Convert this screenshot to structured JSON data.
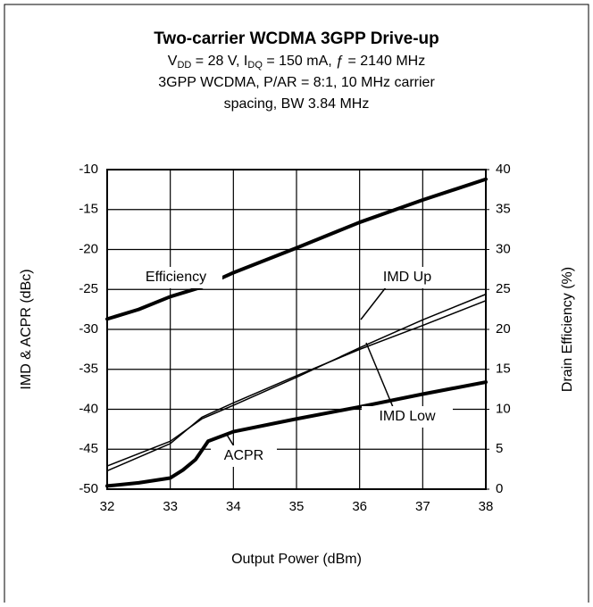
{
  "chart_data": {
    "type": "line",
    "title": "Two-carrier WCDMA 3GPP Drive-up",
    "subtitle": [
      [
        {
          "text": "V"
        },
        {
          "text": "DD",
          "sub": true
        },
        {
          "text": " = 28 V, I"
        },
        {
          "text": "DQ",
          "sub": true
        },
        {
          "text": " = 150 mA, ƒ = 2140 MHz"
        }
      ],
      [
        {
          "text": "3GPP WCDMA, P/AR = 8:1, 10 MHz carrier"
        }
      ],
      [
        {
          "text": "spacing, BW 3.84 MHz"
        }
      ]
    ],
    "xlabel": "Output Power (dBm)",
    "ylabel": "IMD & ACPR (dBc)",
    "y2label": "Drain Efficiency (%)",
    "xlim": [
      32,
      38
    ],
    "xticks": [
      32,
      33,
      34,
      35,
      36,
      37,
      38
    ],
    "ylim": [
      -50,
      -10
    ],
    "yticks": [
      -10,
      -15,
      -20,
      -25,
      -30,
      -35,
      -40,
      -45,
      -50
    ],
    "y2lim": [
      0,
      40
    ],
    "y2ticks": [
      40,
      35,
      30,
      25,
      20,
      15,
      10,
      5,
      0
    ],
    "grid": true,
    "series": [
      {
        "name": "Efficiency",
        "color": "#000000",
        "width": 4,
        "axis": "y2",
        "x": [
          32,
          32.5,
          33,
          33.5,
          34,
          35,
          36,
          37,
          38
        ],
        "values": [
          21.3,
          22.5,
          24.1,
          25.3,
          27.1,
          30.2,
          33.4,
          36.2,
          38.8
        ]
      },
      {
        "name": "IMD Up",
        "color": "#000000",
        "width": 1.5,
        "x": [
          32,
          33,
          33.5,
          34,
          35,
          36,
          37,
          38
        ],
        "values": [
          -47.1,
          -44.0,
          -41.2,
          -39.5,
          -36.0,
          -32.3,
          -28.8,
          -25.6
        ]
      },
      {
        "name": "IMD Low",
        "color": "#000000",
        "width": 1.5,
        "x": [
          32,
          33,
          33.5,
          34,
          35,
          36,
          37,
          38
        ],
        "values": [
          -47.7,
          -44.3,
          -41.0,
          -39.2,
          -35.8,
          -32.5,
          -29.5,
          -26.4
        ]
      },
      {
        "name": "ACPR",
        "color": "#000000",
        "width": 4,
        "x": [
          32,
          32.5,
          33,
          33.2,
          33.4,
          33.6,
          34,
          35,
          36,
          37,
          38
        ],
        "values": [
          -49.6,
          -49.2,
          -48.6,
          -47.6,
          -46.3,
          -44.0,
          -42.8,
          -41.2,
          -39.7,
          -38.1,
          -36.6
        ]
      }
    ]
  }
}
